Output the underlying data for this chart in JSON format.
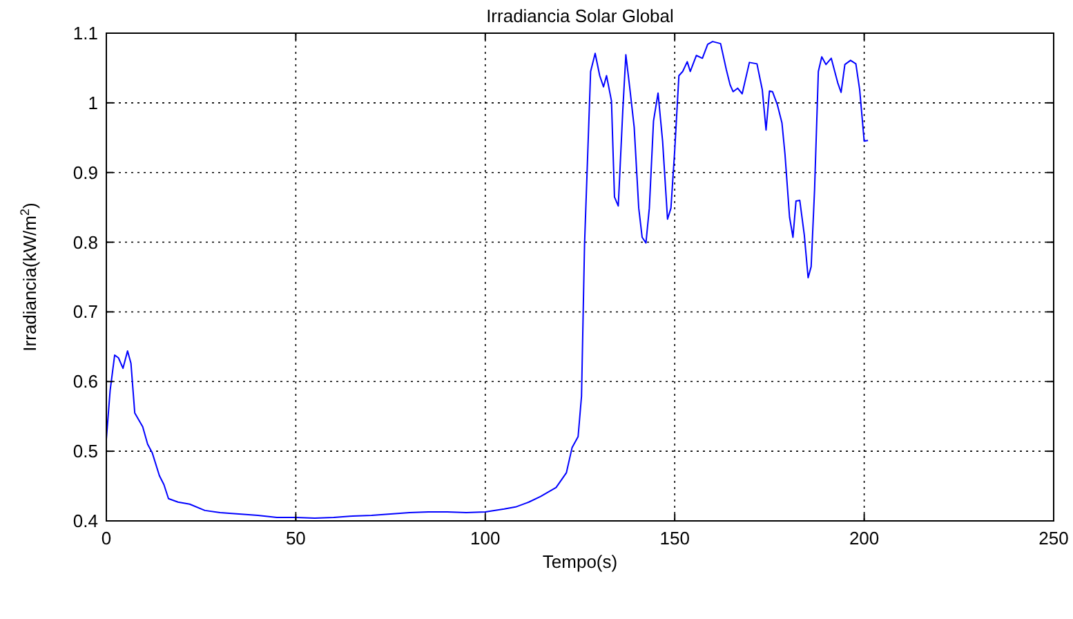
{
  "chart_data": {
    "type": "line",
    "title": "Irradiancia Solar Global",
    "xlabel": "Tempo(s)",
    "ylabel": "Irradiancia(kW/m$^{2}$)",
    "xlim": [
      0,
      250
    ],
    "xticks": [
      0,
      50,
      100,
      150,
      200,
      250
    ],
    "ylim": [
      0.4,
      1.1
    ],
    "yticks": [
      0.4,
      0.5,
      0.6,
      0.7,
      0.8,
      0.9,
      1,
      1.1
    ],
    "grid": true,
    "line_style": "solid",
    "marker": "none",
    "series": [
      {
        "color": "#0000ff",
        "x": [
          0,
          1,
          2.2,
          3.2,
          4.4,
          5.6,
          6.5,
          7.5,
          9.6,
          10.9,
          12.1,
          14,
          15.2,
          16.4,
          18.9,
          22,
          26,
          30,
          35,
          40,
          45,
          50,
          55,
          60,
          65,
          70,
          75,
          80,
          85,
          90,
          95,
          100,
          105,
          108,
          111.5,
          114.6,
          118.7,
          121.4,
          122.9,
          124.5,
          125.4,
          126.2,
          127.8,
          129,
          130.2,
          131.2,
          132,
          133.3,
          134.1,
          135.1,
          136.3,
          137.1,
          138.1,
          139.3,
          140.5,
          141.4,
          142.4,
          143.3,
          144.4,
          145.6,
          146.8,
          148.1,
          149,
          150,
          151.1,
          152.1,
          153.3,
          154.1,
          155.7,
          157.3,
          158.7,
          160,
          162.1,
          163.6,
          164.6,
          165.4,
          166.6,
          167.8,
          169.7,
          171.7,
          173.1,
          174.1,
          175,
          175.8,
          177.1,
          178.3,
          179.1,
          180.3,
          181.2,
          182,
          183,
          184.2,
          185.2,
          186,
          186.9,
          187.9,
          188.8,
          189.9,
          191.3,
          193,
          193.9,
          194.9,
          196.4,
          197.8,
          198.8,
          200,
          201
        ],
        "values": [
          0.517,
          0.587,
          0.638,
          0.634,
          0.619,
          0.644,
          0.626,
          0.555,
          0.535,
          0.51,
          0.498,
          0.465,
          0.452,
          0.432,
          0.427,
          0.424,
          0.415,
          0.412,
          0.41,
          0.408,
          0.405,
          0.405,
          0.404,
          0.405,
          0.407,
          0.408,
          0.41,
          0.412,
          0.413,
          0.413,
          0.412,
          0.413,
          0.417,
          0.42,
          0.427,
          0.435,
          0.448,
          0.469,
          0.505,
          0.521,
          0.579,
          0.797,
          1.045,
          1.071,
          1.039,
          1.023,
          1.039,
          1.003,
          0.865,
          0.852,
          0.99,
          1.069,
          1.023,
          0.965,
          0.849,
          0.807,
          0.799,
          0.849,
          0.974,
          1.014,
          0.945,
          0.833,
          0.849,
          0.932,
          1.039,
          1.045,
          1.059,
          1.045,
          1.068,
          1.064,
          1.084,
          1.088,
          1.085,
          1.048,
          1.026,
          1.016,
          1.021,
          1.013,
          1.058,
          1.056,
          1.019,
          0.961,
          1.017,
          1.016,
          0.997,
          0.971,
          0.926,
          0.836,
          0.807,
          0.859,
          0.86,
          0.81,
          0.749,
          0.765,
          0.875,
          1.045,
          1.066,
          1.055,
          1.064,
          1.029,
          1.015,
          1.055,
          1.061,
          1.056,
          1.019,
          0.945,
          0.946
        ]
      }
    ]
  }
}
